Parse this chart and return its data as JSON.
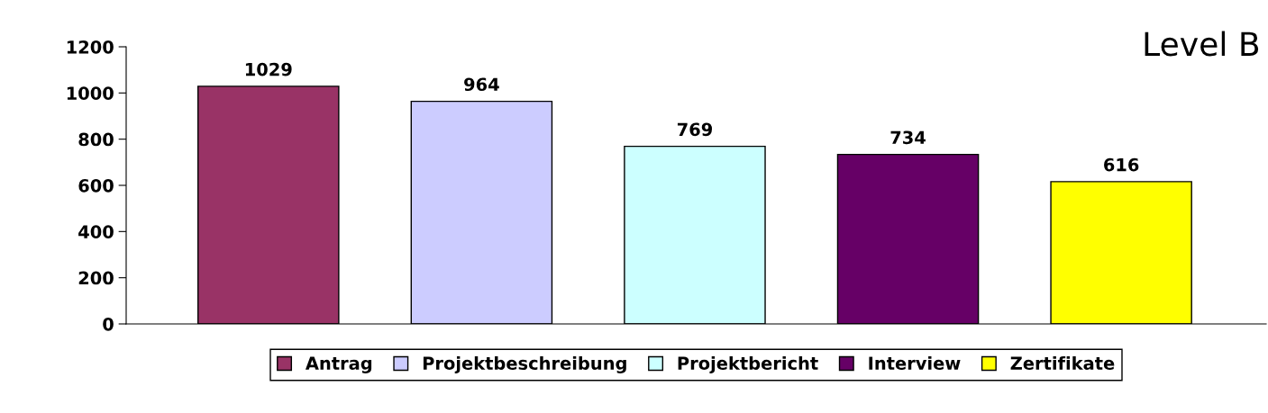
{
  "chart_data": {
    "type": "bar",
    "title": "Level B",
    "categories": [
      null,
      null,
      null,
      null,
      null
    ],
    "series": [
      {
        "name": "Antrag",
        "color": "#993366",
        "values": [
          1029,
          null,
          null,
          null,
          null
        ]
      },
      {
        "name": "Projektbeschreibung",
        "color": "#ccccff",
        "values": [
          null,
          964,
          null,
          null,
          null
        ]
      },
      {
        "name": "Projektbericht",
        "color": "#ccffff",
        "values": [
          null,
          null,
          769,
          null,
          null
        ]
      },
      {
        "name": "Interview",
        "color": "#660066",
        "values": [
          null,
          null,
          null,
          734,
          null
        ]
      },
      {
        "name": "Zertifikate",
        "color": "#ffff00",
        "values": [
          null,
          null,
          null,
          null,
          616
        ]
      }
    ],
    "ylim": [
      0,
      1200
    ],
    "yticks": [
      0,
      200,
      400,
      600,
      800,
      1000,
      1200
    ],
    "data_labels": true,
    "legend": "bottom",
    "grid": false
  }
}
